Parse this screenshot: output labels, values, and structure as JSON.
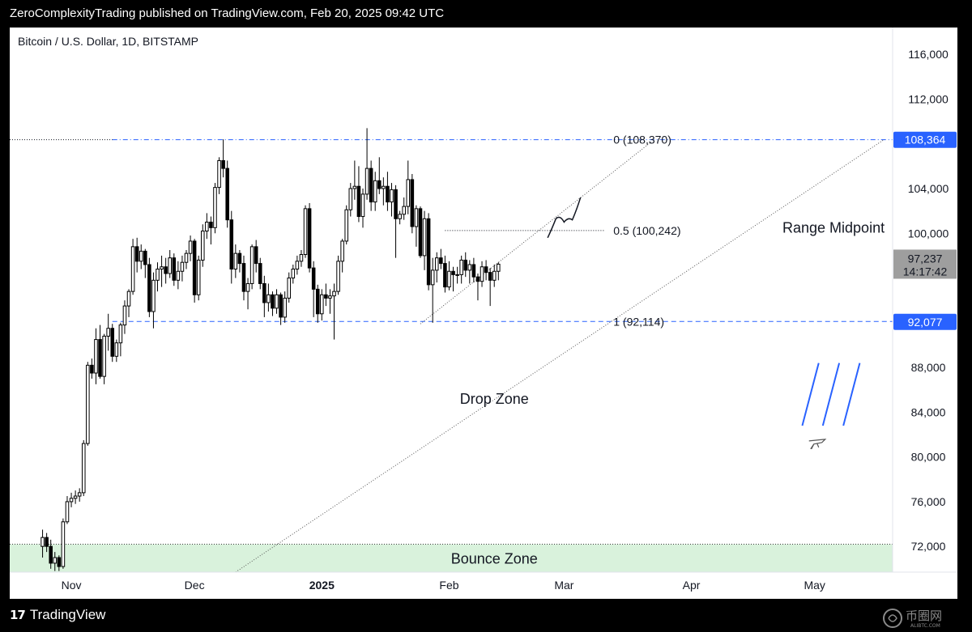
{
  "header": {
    "publish_line": "ZeroComplexityTrading published on TradingView.com, Feb 20, 2025 09:42 UTC"
  },
  "footer": {
    "brand_mark": "17",
    "brand_name": "TradingView",
    "watermark_text": "币圈网",
    "watermark_sub": "ALIBTC.COM"
  },
  "colors": {
    "bounce_zone": "#d9f2dc",
    "fib_blue": "#2962ff",
    "candle": "#000000",
    "axis_text": "#131722",
    "label_blue_bg": "#2962ff",
    "label_grey_bg": "#9e9e9e"
  },
  "chart_data": {
    "type": "candlestick",
    "title": "Bitcoin / U.S. Dollar, 1D, BITSTAMP",
    "x_ticks": [
      {
        "label": "Nov",
        "day": 0
      },
      {
        "label": "Dec",
        "day": 30
      },
      {
        "label": "2025",
        "day": 61
      },
      {
        "label": "Feb",
        "day": 92
      },
      {
        "label": "Mar",
        "day": 120
      },
      {
        "label": "Apr",
        "day": 151
      },
      {
        "label": "May",
        "day": 181
      }
    ],
    "x_range": [
      -15,
      200
    ],
    "y_range": [
      69700,
      118400
    ],
    "y_ticks": [
      "116,000",
      "112,000",
      "104,000",
      "100,000",
      "88,000",
      "84,000",
      "80,000",
      "76,000",
      "72,000"
    ],
    "y_tick_values": [
      116000,
      112000,
      104000,
      100000,
      88000,
      84000,
      80000,
      76000,
      72000
    ],
    "price_labels": [
      {
        "text": "108,364",
        "value": 108364,
        "style": "blue"
      },
      {
        "text": "92,077",
        "value": 92077,
        "style": "blue"
      }
    ],
    "current_price": {
      "price": "97,237",
      "countdown": "14:17:42",
      "value": 97237
    },
    "fib_levels": [
      {
        "label": "0 (108,370)",
        "value": 108370,
        "color": "#2962ff",
        "dash": "dashdot"
      },
      {
        "label": "0.5 (100,242)",
        "value": 100242,
        "color": "#131722",
        "dash": "dotted"
      },
      {
        "label": "1 (92,114)",
        "value": 92114,
        "color": "#2962ff",
        "dash": "dashed"
      }
    ],
    "annotations": [
      {
        "text": "Range Midpoint",
        "day": 165.5,
        "value": 100500
      },
      {
        "text": "Drop Zone",
        "day": 103,
        "value": 85200
      },
      {
        "text": "Bounce Zone",
        "day": 103,
        "value": 70900
      }
    ],
    "bounce_zone": {
      "from": 69700,
      "to": 72200
    },
    "trendlines": [
      {
        "from": [
          85,
          91900
        ],
        "to": [
          141,
          108100
        ]
      },
      {
        "from": [
          40,
          69700
        ],
        "to": [
          198,
          108400
        ]
      }
    ],
    "projection_path": [
      [
        116,
        99600
      ],
      [
        118,
        101300
      ],
      [
        120,
        101000
      ],
      [
        122,
        101200
      ],
      [
        124,
        103200
      ]
    ],
    "candles": [
      [
        -7,
        72000,
        73500,
        71000,
        72800
      ],
      [
        -6,
        72800,
        73200,
        71500,
        72000
      ],
      [
        -5,
        72000,
        72600,
        70000,
        70500
      ],
      [
        -4,
        70500,
        71500,
        69800,
        71000
      ],
      [
        -3,
        71000,
        71200,
        69800,
        70200
      ],
      [
        -2,
        70200,
        74500,
        70000,
        74200
      ],
      [
        -1,
        74200,
        76500,
        74000,
        76000
      ],
      [
        0,
        76000,
        76800,
        75500,
        76300
      ],
      [
        1,
        76300,
        77000,
        75800,
        76500
      ],
      [
        2,
        76500,
        77200,
        76000,
        76800
      ],
      [
        3,
        76800,
        81500,
        76500,
        81200
      ],
      [
        4,
        81200,
        88500,
        81000,
        88200
      ],
      [
        5,
        88200,
        88800,
        87000,
        87500
      ],
      [
        6,
        87500,
        91500,
        86500,
        90500
      ],
      [
        7,
        90500,
        91800,
        87000,
        87200
      ],
      [
        8,
        87200,
        91000,
        86500,
        90800
      ],
      [
        9,
        90800,
        92800,
        89500,
        91500
      ],
      [
        10,
        91500,
        91900,
        88500,
        89000
      ],
      [
        11,
        89000,
        90500,
        88500,
        90200
      ],
      [
        12,
        90200,
        92000,
        89000,
        91800
      ],
      [
        13,
        91800,
        94000,
        91000,
        93500
      ],
      [
        14,
        93500,
        95000,
        92500,
        94800
      ],
      [
        15,
        94800,
        99500,
        94500,
        98800
      ],
      [
        16,
        98800,
        99600,
        96500,
        97500
      ],
      [
        17,
        97500,
        99000,
        96800,
        98400
      ],
      [
        18,
        98400,
        98600,
        96000,
        97200
      ],
      [
        19,
        97200,
        97800,
        92500,
        93000
      ],
      [
        20,
        93000,
        96500,
        91500,
        95800
      ],
      [
        21,
        95800,
        97400,
        94800,
        96800
      ],
      [
        22,
        96800,
        98000,
        95200,
        97000
      ],
      [
        23,
        97000,
        97800,
        95500,
        96400
      ],
      [
        24,
        96400,
        98500,
        96000,
        97800
      ],
      [
        25,
        97800,
        98200,
        95300,
        95800
      ],
      [
        26,
        95800,
        97500,
        95000,
        96600
      ],
      [
        27,
        96600,
        98000,
        95700,
        97400
      ],
      [
        28,
        97400,
        98500,
        96800,
        98200
      ],
      [
        29,
        98200,
        99800,
        97500,
        99300
      ],
      [
        30,
        99300,
        99500,
        93800,
        94500
      ],
      [
        31,
        94500,
        98000,
        94000,
        97600
      ],
      [
        32,
        97600,
        100800,
        97000,
        100200
      ],
      [
        33,
        100200,
        101800,
        99500,
        101000
      ],
      [
        34,
        101000,
        101500,
        99000,
        100500
      ],
      [
        35,
        100500,
        104500,
        100000,
        104100
      ],
      [
        36,
        104100,
        106800,
        103500,
        106500
      ],
      [
        37,
        106500,
        108400,
        105000,
        105800
      ],
      [
        38,
        105800,
        106500,
        100500,
        101200
      ],
      [
        39,
        101200,
        102000,
        95500,
        96800
      ],
      [
        40,
        96800,
        99000,
        96000,
        98200
      ],
      [
        41,
        98200,
        98500,
        96500,
        97300
      ],
      [
        42,
        97300,
        98000,
        94000,
        94800
      ],
      [
        43,
        94800,
        96000,
        93200,
        95500
      ],
      [
        44,
        95500,
        99000,
        95000,
        98800
      ],
      [
        45,
        98800,
        99400,
        96500,
        97300
      ],
      [
        46,
        97300,
        97800,
        95000,
        95500
      ],
      [
        47,
        95500,
        96200,
        92500,
        93800
      ],
      [
        48,
        93800,
        95500,
        93000,
        94500
      ],
      [
        49,
        94500,
        94800,
        92600,
        93300
      ],
      [
        50,
        93300,
        95000,
        92800,
        94500
      ],
      [
        51,
        94500,
        94700,
        91800,
        92500
      ],
      [
        52,
        92500,
        94800,
        92000,
        94200
      ],
      [
        53,
        94200,
        96500,
        93800,
        96000
      ],
      [
        54,
        96000,
        97200,
        95500,
        96800
      ],
      [
        55,
        96800,
        98000,
        96300,
        97500
      ],
      [
        56,
        97500,
        98500,
        97000,
        98100
      ],
      [
        57,
        98100,
        102500,
        97800,
        102200
      ],
      [
        58,
        102200,
        102700,
        96500,
        96900
      ],
      [
        59,
        96900,
        97500,
        92500,
        95000
      ],
      [
        60,
        95000,
        95400,
        92000,
        92800
      ],
      [
        61,
        92800,
        95000,
        92200,
        94500
      ],
      [
        62,
        94500,
        95500,
        93500,
        94200
      ],
      [
        63,
        94200,
        95000,
        92800,
        94400
      ],
      [
        64,
        94400,
        95500,
        90500,
        94800
      ],
      [
        65,
        94800,
        98000,
        94500,
        97500
      ],
      [
        66,
        97500,
        99500,
        96500,
        99300
      ],
      [
        67,
        99300,
        102500,
        99000,
        102100
      ],
      [
        68,
        102100,
        104500,
        101500,
        104000
      ],
      [
        69,
        104000,
        106500,
        103000,
        104200
      ],
      [
        70,
        104200,
        106000,
        101000,
        101500
      ],
      [
        71,
        101500,
        104000,
        100500,
        103500
      ],
      [
        72,
        103500,
        109400,
        103000,
        105800
      ],
      [
        73,
        105800,
        106500,
        102000,
        102800
      ],
      [
        74,
        102800,
        105500,
        102000,
        104700
      ],
      [
        75,
        104700,
        106800,
        103500,
        104000
      ],
      [
        76,
        104000,
        105000,
        102500,
        104200
      ],
      [
        77,
        104200,
        105500,
        102000,
        102800
      ],
      [
        78,
        102800,
        104500,
        101500,
        103900
      ],
      [
        79,
        103900,
        104300,
        97800,
        101300
      ],
      [
        80,
        101300,
        102000,
        100800,
        101700
      ],
      [
        81,
        101700,
        103200,
        101200,
        102400
      ],
      [
        82,
        102400,
        106500,
        101700,
        104800
      ],
      [
        83,
        104800,
        105300,
        100000,
        100600
      ],
      [
        84,
        100600,
        102500,
        98800,
        102200
      ],
      [
        85,
        102200,
        102400,
        97800,
        98000
      ],
      [
        86,
        98000,
        102000,
        96700,
        101300
      ],
      [
        87,
        101300,
        101800,
        94900,
        95400
      ],
      [
        88,
        95400,
        97800,
        92000,
        96700
      ],
      [
        89,
        96700,
        98300,
        95600,
        97800
      ],
      [
        90,
        97800,
        98600,
        96800,
        97300
      ],
      [
        91,
        97300,
        98000,
        94700,
        95200
      ],
      [
        92,
        95200,
        97500,
        94900,
        96600
      ],
      [
        93,
        96600,
        97000,
        94800,
        96300
      ],
      [
        94,
        96300,
        97000,
        95500,
        96300
      ],
      [
        95,
        96300,
        98000,
        95500,
        97600
      ],
      [
        96,
        97600,
        98300,
        96100,
        96700
      ],
      [
        97,
        96700,
        97600,
        95500,
        97200
      ],
      [
        98,
        97200,
        97800,
        95600,
        96100
      ],
      [
        99,
        96100,
        96400,
        94000,
        95700
      ],
      [
        100,
        95700,
        97500,
        95200,
        97000
      ],
      [
        101,
        97000,
        97600,
        95800,
        96500
      ],
      [
        102,
        96500,
        96900,
        93500,
        95800
      ],
      [
        103,
        95800,
        97200,
        95200,
        96600
      ],
      [
        104,
        96600,
        97400,
        95800,
        97237
      ]
    ]
  }
}
